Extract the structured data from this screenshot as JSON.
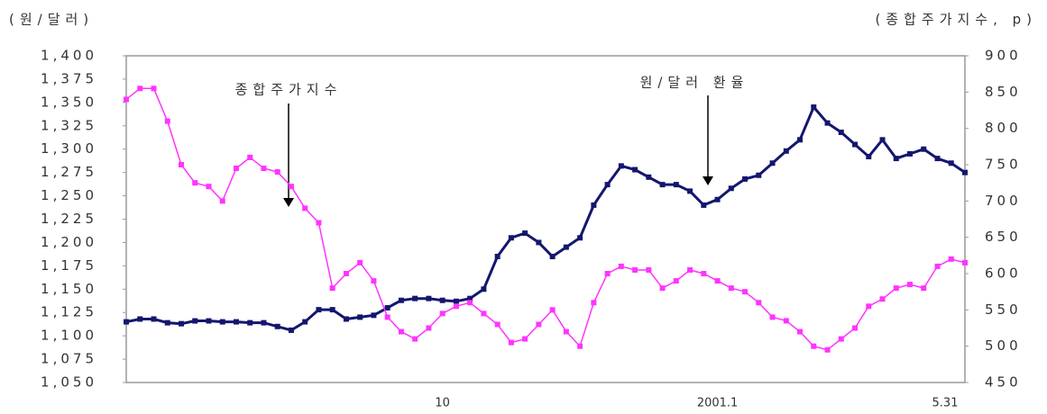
{
  "chart_data": {
    "type": "line",
    "ylabel": "(원/달러)",
    "y2label": "(종합주가지수, p)",
    "categories": [
      null,
      null,
      null,
      null,
      null,
      null,
      null,
      null,
      null,
      null,
      null,
      null,
      null,
      null,
      null,
      null,
      null,
      null,
      null,
      null,
      null,
      null,
      null,
      "10",
      null,
      null,
      null,
      null,
      null,
      null,
      null,
      null,
      null,
      null,
      null,
      null,
      null,
      null,
      null,
      null,
      null,
      null,
      null,
      "2001.1",
      null,
      null,
      null,
      null,
      null,
      null,
      null,
      null,
      null,
      null,
      null,
      null,
      null,
      null,
      null,
      null,
      null,
      "5.31"
    ],
    "series": [
      {
        "name": "원/달러 환율",
        "color": "#14166e",
        "axis": "y",
        "values": [
          1115,
          1118,
          1118,
          1114,
          1113,
          1116,
          1116,
          1115,
          1115,
          1114,
          1114,
          1110,
          1106,
          1115,
          1128,
          1128,
          1118,
          1120,
          1122,
          1130,
          1138,
          1140,
          1140,
          1138,
          1137,
          1140,
          1150,
          1185,
          1205,
          1210,
          1200,
          1185,
          1195,
          1205,
          1240,
          1262,
          1282,
          1278,
          1270,
          1262,
          1262,
          1255,
          1240,
          1246,
          1258,
          1268,
          1272,
          1285,
          1298,
          1310,
          1345,
          1328,
          1318,
          1305,
          1292,
          1310,
          1290,
          1295,
          1300,
          1290,
          1285,
          1275
        ]
      },
      {
        "name": "종합주가지수",
        "color": "#ff33ff",
        "axis": "y2",
        "values": [
          840,
          855,
          855,
          810,
          750,
          725,
          720,
          700,
          745,
          760,
          745,
          740,
          720,
          690,
          670,
          580,
          600,
          615,
          590,
          540,
          520,
          510,
          525,
          545,
          555,
          560,
          545,
          530,
          505,
          510,
          530,
          550,
          520,
          500,
          560,
          600,
          610,
          605,
          605,
          580,
          590,
          605,
          600,
          590,
          580,
          575,
          560,
          540,
          535,
          520,
          500,
          495,
          510,
          525,
          555,
          565,
          580,
          585,
          580,
          610,
          620,
          615
        ]
      }
    ],
    "ylim": [
      1050,
      1400
    ],
    "yticks": [
      {
        "value": 1050,
        "label": "1,050"
      },
      {
        "value": 1075,
        "label": "1,075"
      },
      {
        "value": 1100,
        "label": "1,100"
      },
      {
        "value": 1125,
        "label": "1,125"
      },
      {
        "value": 1150,
        "label": "1,150"
      },
      {
        "value": 1175,
        "label": "1,175"
      },
      {
        "value": 1200,
        "label": "1,200"
      },
      {
        "value": 1225,
        "label": "1,225"
      },
      {
        "value": 1250,
        "label": "1,250"
      },
      {
        "value": 1275,
        "label": "1,275"
      },
      {
        "value": 1300,
        "label": "1,300"
      },
      {
        "value": 1325,
        "label": "1,325"
      },
      {
        "value": 1350,
        "label": "1,350"
      },
      {
        "value": 1375,
        "label": "1,375"
      },
      {
        "value": 1400,
        "label": "1,400"
      }
    ],
    "y2lim": [
      450,
      900
    ],
    "y2ticks": [
      450,
      500,
      550,
      600,
      650,
      700,
      750,
      800,
      850,
      900
    ]
  }
}
